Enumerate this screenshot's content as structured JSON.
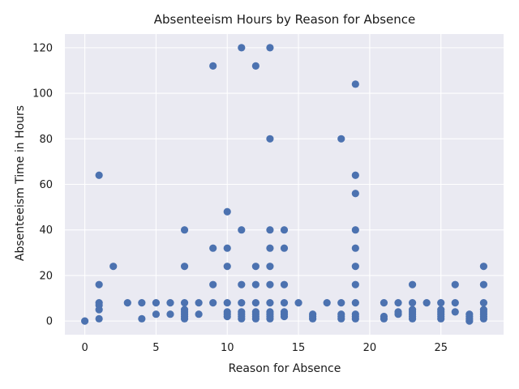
{
  "chart_data": {
    "type": "scatter",
    "title": "Absenteeism Hours by Reason for Absence",
    "xlabel": "Reason for Absence",
    "ylabel": "Absenteeism Time in Hours",
    "xlim": [
      -1.4,
      29.4
    ],
    "ylim": [
      -6,
      126
    ],
    "x_ticks": [
      0,
      5,
      10,
      15,
      20,
      25
    ],
    "y_ticks": [
      0,
      20,
      40,
      60,
      80,
      100,
      120
    ],
    "grid": true,
    "legend": "none",
    "colors": {
      "background": "#eaeaf2",
      "grid": "#ffffff",
      "marker": "#4c72b0"
    },
    "points": [
      [
        0,
        0
      ],
      [
        1,
        1
      ],
      [
        1,
        5
      ],
      [
        1,
        7
      ],
      [
        1,
        8
      ],
      [
        1,
        16
      ],
      [
        1,
        64
      ],
      [
        2,
        24
      ],
      [
        3,
        8
      ],
      [
        4,
        1
      ],
      [
        4,
        8
      ],
      [
        5,
        3
      ],
      [
        5,
        8
      ],
      [
        6,
        3
      ],
      [
        6,
        8
      ],
      [
        7,
        1
      ],
      [
        7,
        2
      ],
      [
        7,
        3
      ],
      [
        7,
        4
      ],
      [
        7,
        5
      ],
      [
        7,
        8
      ],
      [
        7,
        24
      ],
      [
        7,
        40
      ],
      [
        8,
        3
      ],
      [
        8,
        8
      ],
      [
        9,
        8
      ],
      [
        9,
        16
      ],
      [
        9,
        32
      ],
      [
        9,
        112
      ],
      [
        10,
        2
      ],
      [
        10,
        3
      ],
      [
        10,
        4
      ],
      [
        10,
        8
      ],
      [
        10,
        24
      ],
      [
        10,
        32
      ],
      [
        10,
        48
      ],
      [
        11,
        1
      ],
      [
        11,
        2
      ],
      [
        11,
        3
      ],
      [
        11,
        4
      ],
      [
        11,
        8
      ],
      [
        11,
        16
      ],
      [
        11,
        40
      ],
      [
        11,
        120
      ],
      [
        12,
        1
      ],
      [
        12,
        2
      ],
      [
        12,
        3
      ],
      [
        12,
        4
      ],
      [
        12,
        8
      ],
      [
        12,
        16
      ],
      [
        12,
        24
      ],
      [
        12,
        112
      ],
      [
        13,
        1
      ],
      [
        13,
        2
      ],
      [
        13,
        3
      ],
      [
        13,
        4
      ],
      [
        13,
        8
      ],
      [
        13,
        16
      ],
      [
        13,
        24
      ],
      [
        13,
        32
      ],
      [
        13,
        40
      ],
      [
        13,
        80
      ],
      [
        13,
        120
      ],
      [
        14,
        2
      ],
      [
        14,
        3
      ],
      [
        14,
        4
      ],
      [
        14,
        8
      ],
      [
        14,
        16
      ],
      [
        14,
        32
      ],
      [
        14,
        40
      ],
      [
        15,
        8
      ],
      [
        16,
        1
      ],
      [
        16,
        2
      ],
      [
        16,
        3
      ],
      [
        17,
        8
      ],
      [
        18,
        1
      ],
      [
        18,
        2
      ],
      [
        18,
        3
      ],
      [
        18,
        8
      ],
      [
        18,
        80
      ],
      [
        19,
        1
      ],
      [
        19,
        2
      ],
      [
        19,
        3
      ],
      [
        19,
        8
      ],
      [
        19,
        16
      ],
      [
        19,
        24
      ],
      [
        19,
        32
      ],
      [
        19,
        40
      ],
      [
        19,
        56
      ],
      [
        19,
        64
      ],
      [
        19,
        104
      ],
      [
        21,
        1
      ],
      [
        21,
        2
      ],
      [
        21,
        8
      ],
      [
        22,
        3
      ],
      [
        22,
        4
      ],
      [
        22,
        8
      ],
      [
        23,
        1
      ],
      [
        23,
        2
      ],
      [
        23,
        3
      ],
      [
        23,
        4
      ],
      [
        23,
        5
      ],
      [
        23,
        8
      ],
      [
        23,
        16
      ],
      [
        24,
        8
      ],
      [
        25,
        1
      ],
      [
        25,
        2
      ],
      [
        25,
        3
      ],
      [
        25,
        4
      ],
      [
        25,
        5
      ],
      [
        25,
        8
      ],
      [
        26,
        4
      ],
      [
        26,
        8
      ],
      [
        26,
        16
      ],
      [
        27,
        0
      ],
      [
        27,
        1
      ],
      [
        27,
        2
      ],
      [
        27,
        3
      ],
      [
        28,
        1
      ],
      [
        28,
        2
      ],
      [
        28,
        3
      ],
      [
        28,
        4
      ],
      [
        28,
        5
      ],
      [
        28,
        8
      ],
      [
        28,
        16
      ],
      [
        28,
        24
      ]
    ]
  }
}
